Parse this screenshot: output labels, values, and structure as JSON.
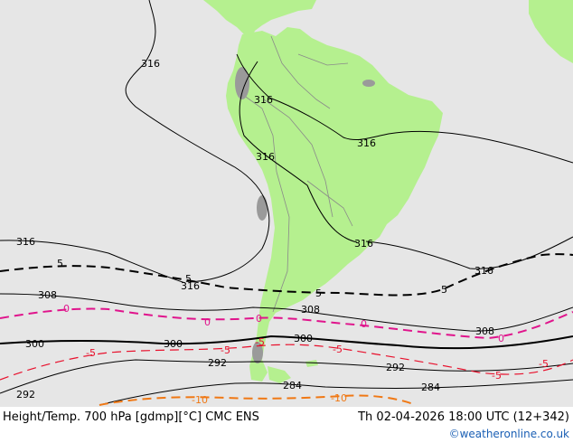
{
  "map": {
    "land_color": "#b5f08f",
    "sea_color": "#e6e6e6",
    "contour_labels": {
      "height": [
        "316",
        "316",
        "316",
        "316",
        "316",
        "316",
        "316",
        "316",
        "308",
        "308",
        "308",
        "300",
        "300",
        "300",
        "292",
        "292",
        "292",
        "284",
        "284"
      ],
      "temp": [
        "0",
        "0",
        "0",
        "0",
        "0",
        "-5",
        "-5",
        "-5",
        "-5",
        "-5",
        "-10",
        "-10",
        "-5",
        "5",
        "5",
        "5",
        "5"
      ]
    }
  },
  "footer": {
    "title": "Height/Temp. 700 hPa [gdmp][°C] CMC ENS",
    "time": "Th 02-04-2026 18:00 UTC (12+342)",
    "credit": "©weatheronline.co.uk"
  }
}
